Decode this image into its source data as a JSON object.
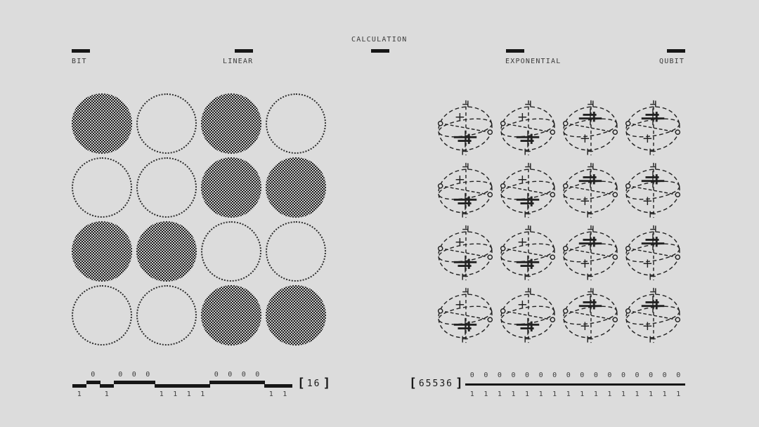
{
  "colors": {
    "background": "#dcdcdc",
    "ink": "#161616",
    "text": "#3b3b3b",
    "sphere_stroke": "#222222",
    "dither_dark": "#1e1e1e",
    "dither_light": "#cacaca"
  },
  "header": {
    "items": [
      {
        "id": "bit",
        "label": "BIT"
      },
      {
        "id": "linear",
        "label": "LINEAR"
      },
      {
        "id": "calculation",
        "label": "CALCULATION"
      },
      {
        "id": "exponential",
        "label": "EXPONENTIAL"
      },
      {
        "id": "qubit",
        "label": "QUBIT"
      }
    ]
  },
  "left_panel": {
    "grid_bits": [
      1,
      0,
      1,
      0,
      0,
      0,
      1,
      1,
      1,
      1,
      0,
      0,
      0,
      0,
      1,
      1
    ],
    "readout": {
      "bits": [
        1,
        0,
        1,
        0,
        0,
        0,
        1,
        1,
        1,
        1,
        0,
        0,
        0,
        0,
        1,
        1
      ],
      "zero_char": "0",
      "one_char": "1",
      "bracket_open": "[",
      "bracket_close": "]",
      "count": "16"
    }
  },
  "right_panel": {
    "sphere_variants": [
      "a",
      "a",
      "b",
      "b",
      "a",
      "a",
      "b",
      "b",
      "a",
      "a",
      "b",
      "b",
      "a",
      "a",
      "b",
      "b"
    ],
    "readout": {
      "slots": 16,
      "zero_char": "0",
      "one_char": "1",
      "bracket_open": "[",
      "bracket_close": "]",
      "count": "65536"
    }
  }
}
